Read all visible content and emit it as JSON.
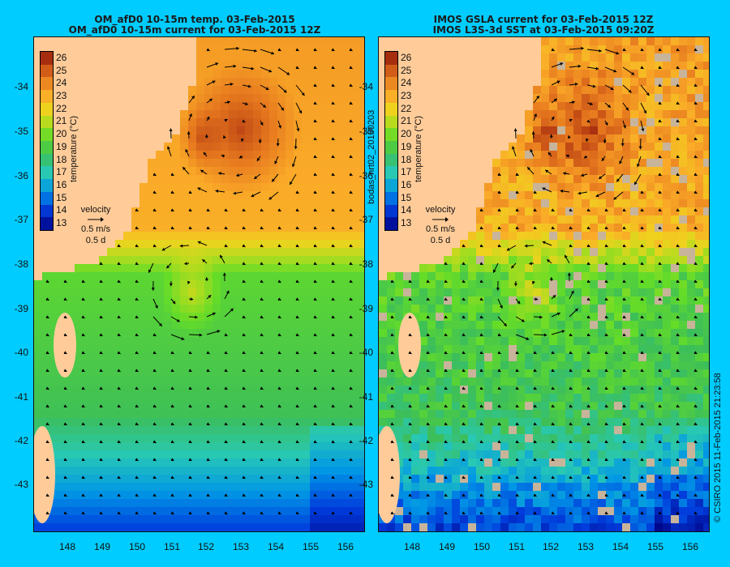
{
  "left_panel": {
    "title_line1": "OM_afD0 10-15m temp. 03-Feb-2015",
    "title_line2": "OM_afD0 10-15m current for 03-Feb-2015 12Z",
    "lat_labels": [
      "-34",
      "-35",
      "-36",
      "-37",
      "-38",
      "-39",
      "-40",
      "-41",
      "-42",
      "-43"
    ],
    "lon_labels": [
      "148",
      "149",
      "150",
      "151",
      "152",
      "153",
      "154",
      "155",
      "156"
    ],
    "colorbar_ticks": [
      "26",
      "25",
      "24",
      "23",
      "22",
      "21",
      "20",
      "19",
      "18",
      "17",
      "16",
      "15",
      "14",
      "13"
    ],
    "colorbar_label": "temperature (°C)",
    "velocity_label": "velocity",
    "velocity_speed": "0.5 m/s",
    "velocity_time": "0.5 d"
  },
  "right_panel": {
    "title_line1": "IMOS GSLA current for 03-Feb-2015 12Z",
    "title_line2": "IMOS L3S-3d SST at 03-Feb-2015 09:20Z",
    "lat_labels": [
      "-34",
      "-35",
      "-36",
      "-37",
      "-38",
      "-39",
      "-40",
      "-41",
      "-42",
      "-43"
    ],
    "lon_labels": [
      "148",
      "149",
      "150",
      "151",
      "152",
      "153",
      "154",
      "155",
      "156"
    ],
    "colorbar_ticks": [
      "26",
      "25",
      "24",
      "23",
      "22",
      "21",
      "20",
      "19",
      "18",
      "17",
      "16",
      "15",
      "14",
      "13"
    ],
    "colorbar_label": "temperature (°C)",
    "velocity_label": "velocity",
    "velocity_speed": "0.5 m/s",
    "velocity_time": "0.5 d"
  },
  "side_label": "bodas_nrt02_20150203",
  "credit": "© CSIRO 2015  11-Feb-2015 21:23:58",
  "colors": {
    "background": "#00ccff",
    "land": "#ffcc99",
    "warm": "#f0a030",
    "cool": "#1040c0",
    "mid": "#40c040"
  }
}
